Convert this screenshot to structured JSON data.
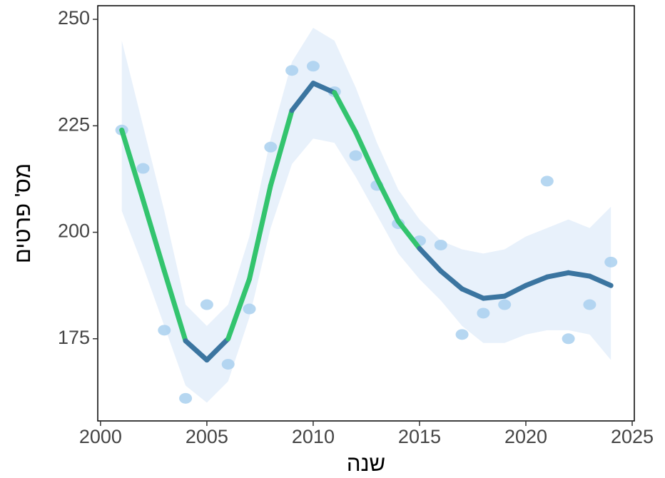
{
  "chart_data": {
    "type": "scatter",
    "x_label": "שנה",
    "y_label": "מס' פרטים",
    "xlim": [
      1999.87,
      2025.1
    ],
    "ylim": [
      155.7,
      253.2
    ],
    "xticks": [
      2000,
      2005,
      2010,
      2015,
      2020,
      2025
    ],
    "yticks": [
      175,
      200,
      225,
      250
    ],
    "points": {
      "color": "#a9d0ee",
      "x": [
        2001,
        2002,
        2003,
        2004,
        2005,
        2006,
        2007,
        2008,
        2009,
        2010,
        2011,
        2012,
        2013,
        2014,
        2015,
        2016,
        2017,
        2018,
        2019,
        2021,
        2022,
        2023,
        2024
      ],
      "y": [
        224,
        215,
        177,
        161,
        183,
        169,
        182,
        220,
        238,
        239,
        233,
        218,
        211,
        202,
        198,
        197,
        176,
        181,
        183,
        212,
        175,
        183,
        193
      ]
    },
    "fit": {
      "color": "#3b75a0",
      "band_color": "#e8f1fb",
      "highlight_color": "#33c46e",
      "highlight_ranges": [
        [
          2001,
          2004
        ],
        [
          2006,
          2009
        ],
        [
          2011,
          2015
        ]
      ],
      "x": [
        2001,
        2002,
        2003,
        2004,
        2005,
        2006,
        2007,
        2008,
        2009,
        2010,
        2011,
        2012,
        2013,
        2014,
        2015,
        2016,
        2017,
        2018,
        2019,
        2020,
        2021,
        2022,
        2023,
        2024
      ],
      "y": [
        224,
        207.6,
        190.9,
        174.5,
        170,
        175,
        189,
        211,
        228.6,
        235,
        232.8,
        223.5,
        212.6,
        202.6,
        196.2,
        190.9,
        186.7,
        184.5,
        185,
        187.5,
        189.5,
        190.5,
        189.7,
        187.5
      ],
      "upper": [
        245,
        225,
        205,
        183,
        178,
        183,
        199,
        222,
        240,
        248,
        245,
        234,
        221,
        210,
        203,
        198,
        196,
        195,
        196,
        199,
        201,
        203,
        201,
        206
      ],
      "lower": [
        205,
        192,
        178,
        164,
        160,
        165,
        180,
        201,
        216,
        222,
        221,
        213,
        204,
        195,
        189,
        184,
        178,
        174,
        174,
        176,
        177,
        177,
        176,
        170
      ]
    }
  }
}
